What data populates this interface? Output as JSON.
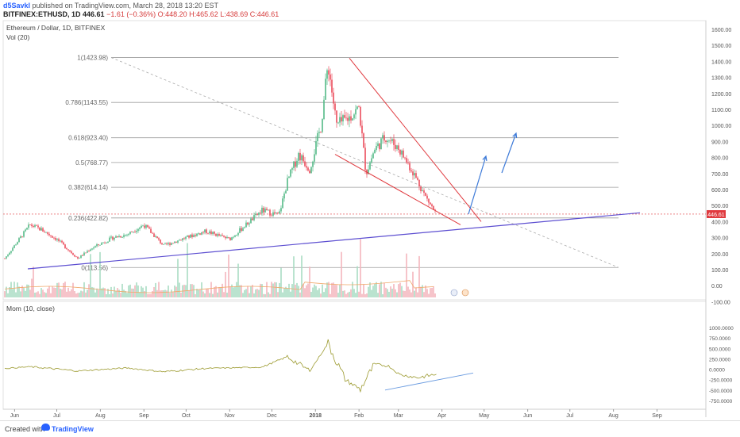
{
  "header": {
    "author": "d5Savkl",
    "published": "published on TradingView.com, March 28, 2018 13:20 EST",
    "symbol": "BITFINEX:ETHUSD, 1D",
    "price": "446.61",
    "change": "−1.61 (−0.36%)",
    "ohlc": "O:448.20 H:465.62 L:438.69 C:446.61"
  },
  "footer": {
    "created_with": "Created with",
    "brand": "TradingView"
  },
  "chart_data": [
    {
      "type": "candlestick",
      "title": "Ethereum / Dollar, 1D, BITFINEX",
      "secondary_label": "Vol (20)",
      "ylim": [
        -150,
        1650
      ],
      "y_ticks": [
        "1600.00",
        "1500.00",
        "1400.00",
        "1300.00",
        "1200.00",
        "1100.00",
        "1000.00",
        "900.00",
        "800.00",
        "700.00",
        "600.00",
        "500.00",
        "400.00",
        "300.00",
        "200.00",
        "100.00",
        "0.00",
        "-100.00"
      ],
      "last_price_label": "446.61",
      "fib_levels": [
        {
          "label": "1(1423.98)",
          "value": 1423.98
        },
        {
          "label": "0.786(1143.55)",
          "value": 1143.55
        },
        {
          "label": "0.618(923.40)",
          "value": 923.4
        },
        {
          "label": "0.5(768.77)",
          "value": 768.77
        },
        {
          "label": "0.382(614.14)",
          "value": 614.14
        },
        {
          "label": "0.236(422.82)",
          "value": 422.82
        },
        {
          "label": "0(113.56)",
          "value": 113.56
        }
      ],
      "x_labels": [
        "Jun",
        "Jul",
        "Aug",
        "Sep",
        "Oct",
        "Nov",
        "Dec",
        "2018",
        "Feb",
        "Mar",
        "Apr",
        "May",
        "Jun",
        "Jul",
        "Aug",
        "Sep"
      ],
      "close_series": [
        {
          "date": "2017-05-25",
          "close": 170
        },
        {
          "date": "2017-06-12",
          "close": 380
        },
        {
          "date": "2017-06-20",
          "close": 350
        },
        {
          "date": "2017-07-01",
          "close": 290
        },
        {
          "date": "2017-07-16",
          "close": 170
        },
        {
          "date": "2017-07-25",
          "close": 230
        },
        {
          "date": "2017-08-10",
          "close": 300
        },
        {
          "date": "2017-08-20",
          "close": 320
        },
        {
          "date": "2017-09-01",
          "close": 380
        },
        {
          "date": "2017-09-15",
          "close": 250
        },
        {
          "date": "2017-10-01",
          "close": 300
        },
        {
          "date": "2017-10-15",
          "close": 340
        },
        {
          "date": "2017-11-01",
          "close": 290
        },
        {
          "date": "2017-11-24",
          "close": 470
        },
        {
          "date": "2017-12-06",
          "close": 440
        },
        {
          "date": "2017-12-12",
          "close": 650
        },
        {
          "date": "2017-12-20",
          "close": 820
        },
        {
          "date": "2017-12-28",
          "close": 730
        },
        {
          "date": "2018-01-05",
          "close": 1000
        },
        {
          "date": "2018-01-10",
          "close": 1390
        },
        {
          "date": "2018-01-16",
          "close": 1000
        },
        {
          "date": "2018-01-25",
          "close": 1050
        },
        {
          "date": "2018-02-01",
          "close": 1110
        },
        {
          "date": "2018-02-06",
          "close": 700
        },
        {
          "date": "2018-02-12",
          "close": 850
        },
        {
          "date": "2018-02-20",
          "close": 930
        },
        {
          "date": "2018-03-01",
          "close": 860
        },
        {
          "date": "2018-03-12",
          "close": 700
        },
        {
          "date": "2018-03-20",
          "close": 560
        },
        {
          "date": "2018-03-28",
          "close": 446.61
        }
      ]
    },
    {
      "type": "line",
      "title": "Mom (10, close)",
      "ylim": [
        -800,
        900
      ],
      "y_ticks": [
        "1000.0000",
        "750.0000",
        "500.0000",
        "250.0000",
        "0.0000",
        "-250.0000",
        "-500.0000",
        "-750.0000"
      ],
      "series": [
        {
          "values_by_date": [
            {
              "date": "2017-05-25",
              "value": 20
            },
            {
              "date": "2017-06-12",
              "value": 60
            },
            {
              "date": "2017-07-16",
              "value": -40
            },
            {
              "date": "2017-08-20",
              "value": 30
            },
            {
              "date": "2017-09-15",
              "value": -60
            },
            {
              "date": "2017-10-15",
              "value": 20
            },
            {
              "date": "2017-11-24",
              "value": 50
            },
            {
              "date": "2017-12-12",
              "value": 300
            },
            {
              "date": "2017-12-28",
              "value": -40
            },
            {
              "date": "2018-01-10",
              "value": 620
            },
            {
              "date": "2018-01-22",
              "value": -250
            },
            {
              "date": "2018-02-02",
              "value": -480
            },
            {
              "date": "2018-02-12",
              "value": 120
            },
            {
              "date": "2018-02-22",
              "value": 80
            },
            {
              "date": "2018-03-02",
              "value": -130
            },
            {
              "date": "2018-03-15",
              "value": -200
            },
            {
              "date": "2018-03-28",
              "value": -120
            }
          ]
        }
      ]
    }
  ],
  "colors": {
    "up": "#53b987",
    "down": "#eb4d5c",
    "trendline_purple": "#5d4fd1",
    "wedge_red": "#e0393e",
    "arrow_blue": "#3d7ad8",
    "momentum_line": "#9c9a2f",
    "fib_line": "#9e9e9e",
    "price_tag": "#e0393e"
  }
}
